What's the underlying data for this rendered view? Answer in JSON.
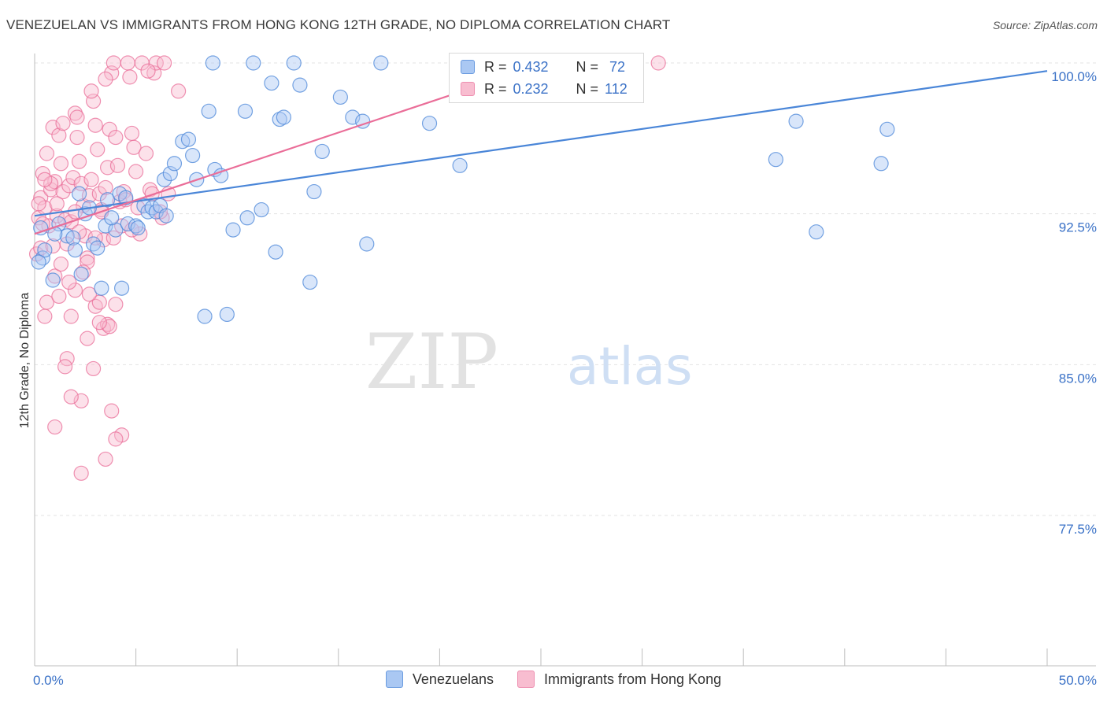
{
  "title": "VENEZUELAN VS IMMIGRANTS FROM HONG KONG 12TH GRADE, NO DIPLOMA CORRELATION CHART",
  "source": "Source: ZipAtlas.com",
  "watermark": {
    "zip": "ZIP",
    "atlas": "atlas"
  },
  "colors": {
    "blue": "#4a86d8",
    "blue_fill": "#aac8f3",
    "pink": "#ea6d98",
    "pink_fill": "#f8bdd0",
    "axis_label": "#3b72c7",
    "grid": "#e3e3e3"
  },
  "legend": {
    "r_label": "R =",
    "n_label": "N =",
    "series": [
      {
        "name": "Venezuelans",
        "r": "0.432",
        "n": "72",
        "color": "blue"
      },
      {
        "name": "Immigrants from Hong Kong",
        "r": "0.232",
        "n": "112",
        "color": "pink"
      }
    ]
  },
  "chart_data": {
    "type": "scatter",
    "title": "VENEZUELAN VS IMMIGRANTS FROM HONG KONG 12TH GRADE, NO DIPLOMA CORRELATION CHART",
    "ylabel": "12th Grade, No Diploma",
    "xlabel": "",
    "xlim": [
      0,
      50
    ],
    "ylim": [
      70,
      100.8
    ],
    "x_tick_labels": [
      {
        "value": 0,
        "label": "0.0%"
      },
      {
        "value": 50,
        "label": "50.0%"
      }
    ],
    "y_tick_labels": [
      {
        "value": 100,
        "label": "100.0%"
      },
      {
        "value": 92.5,
        "label": "92.5%"
      },
      {
        "value": 85,
        "label": "85.0%"
      },
      {
        "value": 77.5,
        "label": "77.5%"
      }
    ],
    "x_minor_ticks": [
      0,
      5,
      10,
      15,
      20,
      25,
      30,
      35,
      40,
      45,
      50
    ],
    "series": [
      {
        "name": "Venezuelans",
        "color": "blue",
        "trend": {
          "x": [
            0,
            50
          ],
          "y": [
            92.4,
            99.6
          ]
        },
        "points": [
          [
            0.3,
            91.8
          ],
          [
            0.4,
            90.3
          ],
          [
            0.5,
            90.7
          ],
          [
            0.9,
            89.2
          ],
          [
            1.2,
            92.0
          ],
          [
            1.6,
            91.4
          ],
          [
            1.9,
            91.3
          ],
          [
            2.0,
            90.7
          ],
          [
            2.2,
            93.5
          ],
          [
            2.3,
            89.5
          ],
          [
            2.5,
            92.5
          ],
          [
            2.7,
            92.8
          ],
          [
            2.9,
            91.0
          ],
          [
            3.1,
            90.8
          ],
          [
            3.3,
            88.8
          ],
          [
            3.5,
            91.9
          ],
          [
            3.6,
            93.2
          ],
          [
            4.0,
            91.7
          ],
          [
            4.2,
            93.5
          ],
          [
            4.3,
            88.8
          ],
          [
            4.5,
            93.3
          ],
          [
            4.6,
            92.0
          ],
          [
            5.0,
            91.9
          ],
          [
            5.1,
            91.8
          ],
          [
            5.4,
            92.9
          ],
          [
            5.6,
            92.6
          ],
          [
            5.8,
            92.8
          ],
          [
            6.0,
            92.6
          ],
          [
            6.2,
            92.9
          ],
          [
            6.4,
            94.2
          ],
          [
            6.5,
            92.4
          ],
          [
            6.7,
            94.5
          ],
          [
            6.9,
            95.0
          ],
          [
            7.3,
            96.1
          ],
          [
            7.6,
            96.2
          ],
          [
            7.8,
            95.4
          ],
          [
            8.0,
            94.2
          ],
          [
            8.4,
            87.4
          ],
          [
            8.6,
            97.6
          ],
          [
            8.8,
            100.0
          ],
          [
            8.9,
            94.7
          ],
          [
            9.2,
            94.4
          ],
          [
            9.5,
            87.5
          ],
          [
            9.8,
            91.7
          ],
          [
            10.4,
            97.6
          ],
          [
            10.5,
            92.3
          ],
          [
            10.8,
            100.0
          ],
          [
            11.2,
            92.7
          ],
          [
            11.7,
            99.0
          ],
          [
            11.9,
            90.6
          ],
          [
            12.1,
            97.2
          ],
          [
            12.3,
            97.3
          ],
          [
            12.8,
            100.0
          ],
          [
            13.1,
            98.9
          ],
          [
            13.6,
            89.1
          ],
          [
            13.8,
            93.6
          ],
          [
            14.2,
            95.6
          ],
          [
            15.1,
            98.3
          ],
          [
            15.7,
            97.3
          ],
          [
            16.2,
            97.1
          ],
          [
            16.4,
            91.0
          ],
          [
            17.1,
            100.0
          ],
          [
            19.5,
            97.0
          ],
          [
            21.0,
            94.9
          ],
          [
            36.6,
            95.2
          ],
          [
            37.6,
            97.1
          ],
          [
            38.6,
            91.6
          ],
          [
            41.8,
            95.0
          ],
          [
            42.1,
            96.7
          ],
          [
            0.2,
            90.1
          ],
          [
            1.0,
            91.5
          ],
          [
            3.8,
            92.3
          ]
        ]
      },
      {
        "name": "Immigrants from Hong Kong",
        "color": "pink",
        "trend": {
          "x": [
            0,
            25.3
          ],
          "y": [
            91.5,
            100.0
          ]
        },
        "points": [
          [
            0.1,
            90.5
          ],
          [
            0.2,
            92.3
          ],
          [
            0.3,
            93.3
          ],
          [
            0.4,
            94.5
          ],
          [
            0.5,
            92.8
          ],
          [
            0.6,
            95.5
          ],
          [
            0.7,
            91.9
          ],
          [
            0.8,
            93.7
          ],
          [
            0.9,
            96.8
          ],
          [
            1.0,
            94.1
          ],
          [
            1.1,
            92.4
          ],
          [
            1.2,
            96.4
          ],
          [
            1.3,
            95.0
          ],
          [
            1.4,
            93.6
          ],
          [
            1.5,
            92.2
          ],
          [
            1.6,
            91.0
          ],
          [
            1.7,
            93.9
          ],
          [
            1.8,
            92.1
          ],
          [
            1.9,
            94.3
          ],
          [
            2.0,
            97.5
          ],
          [
            2.1,
            96.3
          ],
          [
            2.2,
            95.1
          ],
          [
            2.3,
            94.0
          ],
          [
            2.4,
            92.9
          ],
          [
            2.5,
            91.4
          ],
          [
            2.6,
            90.3
          ],
          [
            2.7,
            93.4
          ],
          [
            2.8,
            94.2
          ],
          [
            2.9,
            98.1
          ],
          [
            3.0,
            96.9
          ],
          [
            3.1,
            95.7
          ],
          [
            3.2,
            93.5
          ],
          [
            3.3,
            92.7
          ],
          [
            3.4,
            91.2
          ],
          [
            3.5,
            93.8
          ],
          [
            3.6,
            94.8
          ],
          [
            3.7,
            96.7
          ],
          [
            3.8,
            99.5
          ],
          [
            3.9,
            100.0
          ],
          [
            4.0,
            96.3
          ],
          [
            4.1,
            94.9
          ],
          [
            4.2,
            93.1
          ],
          [
            4.3,
            91.9
          ],
          [
            4.4,
            93.6
          ],
          [
            4.6,
            100.0
          ],
          [
            4.8,
            96.5
          ],
          [
            4.9,
            95.8
          ],
          [
            5.0,
            94.6
          ],
          [
            5.1,
            92.8
          ],
          [
            5.2,
            91.5
          ],
          [
            5.3,
            100.0
          ],
          [
            5.5,
            95.5
          ],
          [
            5.7,
            93.7
          ],
          [
            5.9,
            99.5
          ],
          [
            6.0,
            100.0
          ],
          [
            6.3,
            92.3
          ],
          [
            6.6,
            93.5
          ],
          [
            7.1,
            98.6
          ],
          [
            1.0,
            89.4
          ],
          [
            0.6,
            88.1
          ],
          [
            0.5,
            87.4
          ],
          [
            1.8,
            87.4
          ],
          [
            1.6,
            85.3
          ],
          [
            1.5,
            84.9
          ],
          [
            2.3,
            83.2
          ],
          [
            1.8,
            83.4
          ],
          [
            2.6,
            86.3
          ],
          [
            2.9,
            84.8
          ],
          [
            3.0,
            87.9
          ],
          [
            3.2,
            88.1
          ],
          [
            3.4,
            86.8
          ],
          [
            3.6,
            87.0
          ],
          [
            3.7,
            86.9
          ],
          [
            3.8,
            82.7
          ],
          [
            4.3,
            81.5
          ],
          [
            4.0,
            81.3
          ],
          [
            3.5,
            80.3
          ],
          [
            2.3,
            79.6
          ],
          [
            1.0,
            81.9
          ],
          [
            3.2,
            87.1
          ],
          [
            4.0,
            88.0
          ],
          [
            2.6,
            90.1
          ],
          [
            2.0,
            88.7
          ],
          [
            1.2,
            88.4
          ],
          [
            2.2,
            91.6
          ],
          [
            3.3,
            92.6
          ],
          [
            4.8,
            91.7
          ],
          [
            6.2,
            92.6
          ],
          [
            0.3,
            90.8
          ],
          [
            0.2,
            93.0
          ],
          [
            0.4,
            92.0
          ],
          [
            0.8,
            94.0
          ],
          [
            1.1,
            93.0
          ],
          [
            2.7,
            88.5
          ],
          [
            2.4,
            89.6
          ],
          [
            3.0,
            91.3
          ],
          [
            3.9,
            91.3
          ],
          [
            4.5,
            93.2
          ],
          [
            5.8,
            93.5
          ],
          [
            0.5,
            94.2
          ],
          [
            1.4,
            97.0
          ],
          [
            2.1,
            97.3
          ],
          [
            2.8,
            98.6
          ],
          [
            3.5,
            99.2
          ],
          [
            4.7,
            99.3
          ],
          [
            5.6,
            99.6
          ],
          [
            6.4,
            100.0
          ],
          [
            30.8,
            100.0
          ],
          [
            0.9,
            90.9
          ],
          [
            1.3,
            90.0
          ],
          [
            2.0,
            92.6
          ],
          [
            1.7,
            89.1
          ]
        ]
      }
    ]
  }
}
